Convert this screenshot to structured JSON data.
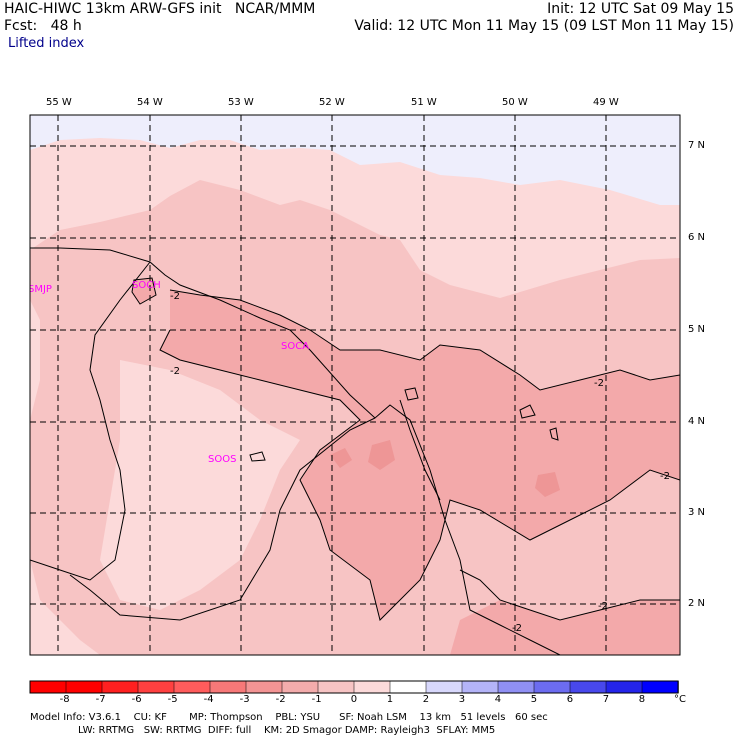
{
  "header": {
    "line1_left": "HAIC-HIWC 13km ARW-GFS init   NCAR/MMM",
    "line1_right": "Init: 12 UTC Sat 09 May 15",
    "line2_left": "Fcst:   48 h",
    "line2_right": "Valid: 12 UTC Mon 11 May 15 (09 LST Mon 11 May 15)",
    "field_name": "Lifted index"
  },
  "map": {
    "longitude_labels": [
      "55 W",
      "54 W",
      "53 W",
      "52 W",
      "51 W",
      "50 W",
      "49 W"
    ],
    "latitude_labels": [
      "7 N",
      "6 N",
      "5 N",
      "4 N",
      "3 N",
      "2 N"
    ],
    "stations": [
      "SMJP",
      "SOCA",
      "SOOS",
      "SOCH"
    ],
    "contour_labels": [
      "-2",
      "-2",
      "-2",
      "-2",
      "-2",
      "-2",
      "-2",
      "-2"
    ],
    "colors": {
      "background": "#ffffff",
      "frame": "#000000",
      "station": "#ff00ff",
      "li_neg1_0": "#fcdada",
      "li_neg2_neg1": "#f7c4c4",
      "li_neg3_neg2": "#f3a9aa",
      "li_0_1": "#eeeefc"
    }
  },
  "colorbar": {
    "ticks": [
      "-8",
      "-7",
      "-6",
      "-5",
      "-4",
      "-3",
      "-2",
      "-1",
      "0",
      "1",
      "2",
      "3",
      "4",
      "5",
      "6",
      "7",
      "8"
    ],
    "unit": "°C",
    "colors": [
      "#ff0000",
      "#ff2020",
      "#ff4040",
      "#ff5c5c",
      "#f77878",
      "#f39494",
      "#f3acac",
      "#f7c4c4",
      "#fcdada",
      "#ffffff",
      "#d8d8fc",
      "#b4b4f8",
      "#9090f4",
      "#6c6cf0",
      "#4848ec",
      "#2424ea",
      "#0000ff"
    ]
  },
  "footer": {
    "line1": "Model Info: V3.6.1    CU: KF       MP: Thompson    PBL: YSU      SF: Noah LSM    13 km   51 levels   60 sec",
    "line2": "LW: RRTMG   SW: RRTMG  DIFF: full    KM: 2D Smagor DAMP: Rayleigh3  SFLAY: MM5"
  }
}
